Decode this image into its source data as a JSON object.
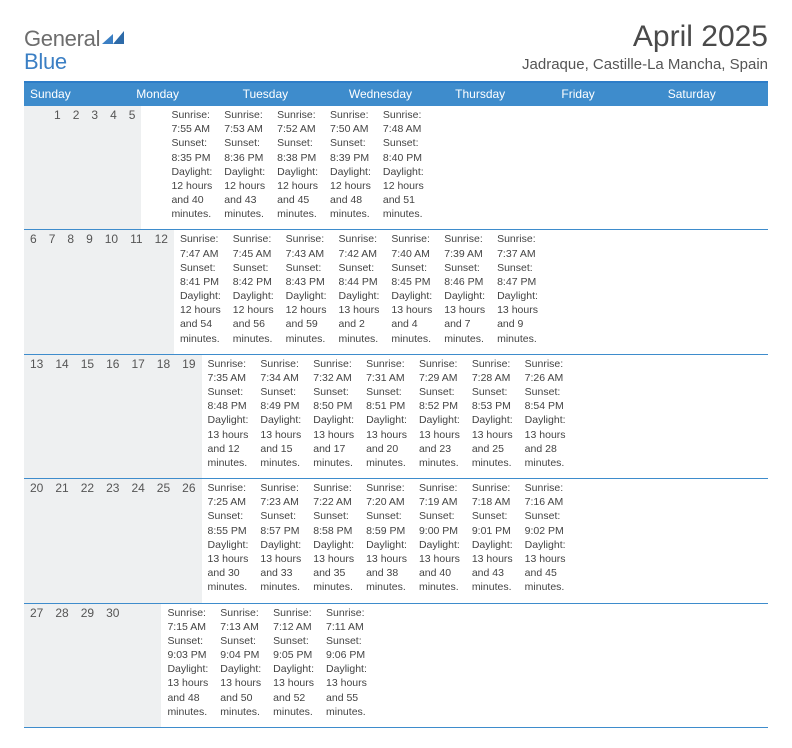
{
  "logo": {
    "line1": "General",
    "line2": "Blue"
  },
  "title": "April 2025",
  "location": "Jadraque, Castille-La Mancha, Spain",
  "colors": {
    "header_band": "#3e8ccc",
    "header_rule": "#2d7dc8",
    "daynum_band": "#eef0f1",
    "text": "#3a3a3a",
    "logo_gray": "#6d6d6d",
    "logo_blue": "#3b7fc4"
  },
  "dow": [
    "Sunday",
    "Monday",
    "Tuesday",
    "Wednesday",
    "Thursday",
    "Friday",
    "Saturday"
  ],
  "weeks": [
    [
      {
        "num": "",
        "sunrise": "",
        "sunset": "",
        "daylight": ""
      },
      {
        "num": "",
        "sunrise": "",
        "sunset": "",
        "daylight": ""
      },
      {
        "num": "1",
        "sunrise": "Sunrise: 7:55 AM",
        "sunset": "Sunset: 8:35 PM",
        "daylight": "Daylight: 12 hours and 40 minutes."
      },
      {
        "num": "2",
        "sunrise": "Sunrise: 7:53 AM",
        "sunset": "Sunset: 8:36 PM",
        "daylight": "Daylight: 12 hours and 43 minutes."
      },
      {
        "num": "3",
        "sunrise": "Sunrise: 7:52 AM",
        "sunset": "Sunset: 8:38 PM",
        "daylight": "Daylight: 12 hours and 45 minutes."
      },
      {
        "num": "4",
        "sunrise": "Sunrise: 7:50 AM",
        "sunset": "Sunset: 8:39 PM",
        "daylight": "Daylight: 12 hours and 48 minutes."
      },
      {
        "num": "5",
        "sunrise": "Sunrise: 7:48 AM",
        "sunset": "Sunset: 8:40 PM",
        "daylight": "Daylight: 12 hours and 51 minutes."
      }
    ],
    [
      {
        "num": "6",
        "sunrise": "Sunrise: 7:47 AM",
        "sunset": "Sunset: 8:41 PM",
        "daylight": "Daylight: 12 hours and 54 minutes."
      },
      {
        "num": "7",
        "sunrise": "Sunrise: 7:45 AM",
        "sunset": "Sunset: 8:42 PM",
        "daylight": "Daylight: 12 hours and 56 minutes."
      },
      {
        "num": "8",
        "sunrise": "Sunrise: 7:43 AM",
        "sunset": "Sunset: 8:43 PM",
        "daylight": "Daylight: 12 hours and 59 minutes."
      },
      {
        "num": "9",
        "sunrise": "Sunrise: 7:42 AM",
        "sunset": "Sunset: 8:44 PM",
        "daylight": "Daylight: 13 hours and 2 minutes."
      },
      {
        "num": "10",
        "sunrise": "Sunrise: 7:40 AM",
        "sunset": "Sunset: 8:45 PM",
        "daylight": "Daylight: 13 hours and 4 minutes."
      },
      {
        "num": "11",
        "sunrise": "Sunrise: 7:39 AM",
        "sunset": "Sunset: 8:46 PM",
        "daylight": "Daylight: 13 hours and 7 minutes."
      },
      {
        "num": "12",
        "sunrise": "Sunrise: 7:37 AM",
        "sunset": "Sunset: 8:47 PM",
        "daylight": "Daylight: 13 hours and 9 minutes."
      }
    ],
    [
      {
        "num": "13",
        "sunrise": "Sunrise: 7:35 AM",
        "sunset": "Sunset: 8:48 PM",
        "daylight": "Daylight: 13 hours and 12 minutes."
      },
      {
        "num": "14",
        "sunrise": "Sunrise: 7:34 AM",
        "sunset": "Sunset: 8:49 PM",
        "daylight": "Daylight: 13 hours and 15 minutes."
      },
      {
        "num": "15",
        "sunrise": "Sunrise: 7:32 AM",
        "sunset": "Sunset: 8:50 PM",
        "daylight": "Daylight: 13 hours and 17 minutes."
      },
      {
        "num": "16",
        "sunrise": "Sunrise: 7:31 AM",
        "sunset": "Sunset: 8:51 PM",
        "daylight": "Daylight: 13 hours and 20 minutes."
      },
      {
        "num": "17",
        "sunrise": "Sunrise: 7:29 AM",
        "sunset": "Sunset: 8:52 PM",
        "daylight": "Daylight: 13 hours and 23 minutes."
      },
      {
        "num": "18",
        "sunrise": "Sunrise: 7:28 AM",
        "sunset": "Sunset: 8:53 PM",
        "daylight": "Daylight: 13 hours and 25 minutes."
      },
      {
        "num": "19",
        "sunrise": "Sunrise: 7:26 AM",
        "sunset": "Sunset: 8:54 PM",
        "daylight": "Daylight: 13 hours and 28 minutes."
      }
    ],
    [
      {
        "num": "20",
        "sunrise": "Sunrise: 7:25 AM",
        "sunset": "Sunset: 8:55 PM",
        "daylight": "Daylight: 13 hours and 30 minutes."
      },
      {
        "num": "21",
        "sunrise": "Sunrise: 7:23 AM",
        "sunset": "Sunset: 8:57 PM",
        "daylight": "Daylight: 13 hours and 33 minutes."
      },
      {
        "num": "22",
        "sunrise": "Sunrise: 7:22 AM",
        "sunset": "Sunset: 8:58 PM",
        "daylight": "Daylight: 13 hours and 35 minutes."
      },
      {
        "num": "23",
        "sunrise": "Sunrise: 7:20 AM",
        "sunset": "Sunset: 8:59 PM",
        "daylight": "Daylight: 13 hours and 38 minutes."
      },
      {
        "num": "24",
        "sunrise": "Sunrise: 7:19 AM",
        "sunset": "Sunset: 9:00 PM",
        "daylight": "Daylight: 13 hours and 40 minutes."
      },
      {
        "num": "25",
        "sunrise": "Sunrise: 7:18 AM",
        "sunset": "Sunset: 9:01 PM",
        "daylight": "Daylight: 13 hours and 43 minutes."
      },
      {
        "num": "26",
        "sunrise": "Sunrise: 7:16 AM",
        "sunset": "Sunset: 9:02 PM",
        "daylight": "Daylight: 13 hours and 45 minutes."
      }
    ],
    [
      {
        "num": "27",
        "sunrise": "Sunrise: 7:15 AM",
        "sunset": "Sunset: 9:03 PM",
        "daylight": "Daylight: 13 hours and 48 minutes."
      },
      {
        "num": "28",
        "sunrise": "Sunrise: 7:13 AM",
        "sunset": "Sunset: 9:04 PM",
        "daylight": "Daylight: 13 hours and 50 minutes."
      },
      {
        "num": "29",
        "sunrise": "Sunrise: 7:12 AM",
        "sunset": "Sunset: 9:05 PM",
        "daylight": "Daylight: 13 hours and 52 minutes."
      },
      {
        "num": "30",
        "sunrise": "Sunrise: 7:11 AM",
        "sunset": "Sunset: 9:06 PM",
        "daylight": "Daylight: 13 hours and 55 minutes."
      },
      {
        "num": "",
        "sunrise": "",
        "sunset": "",
        "daylight": ""
      },
      {
        "num": "",
        "sunrise": "",
        "sunset": "",
        "daylight": ""
      },
      {
        "num": "",
        "sunrise": "",
        "sunset": "",
        "daylight": ""
      }
    ]
  ]
}
